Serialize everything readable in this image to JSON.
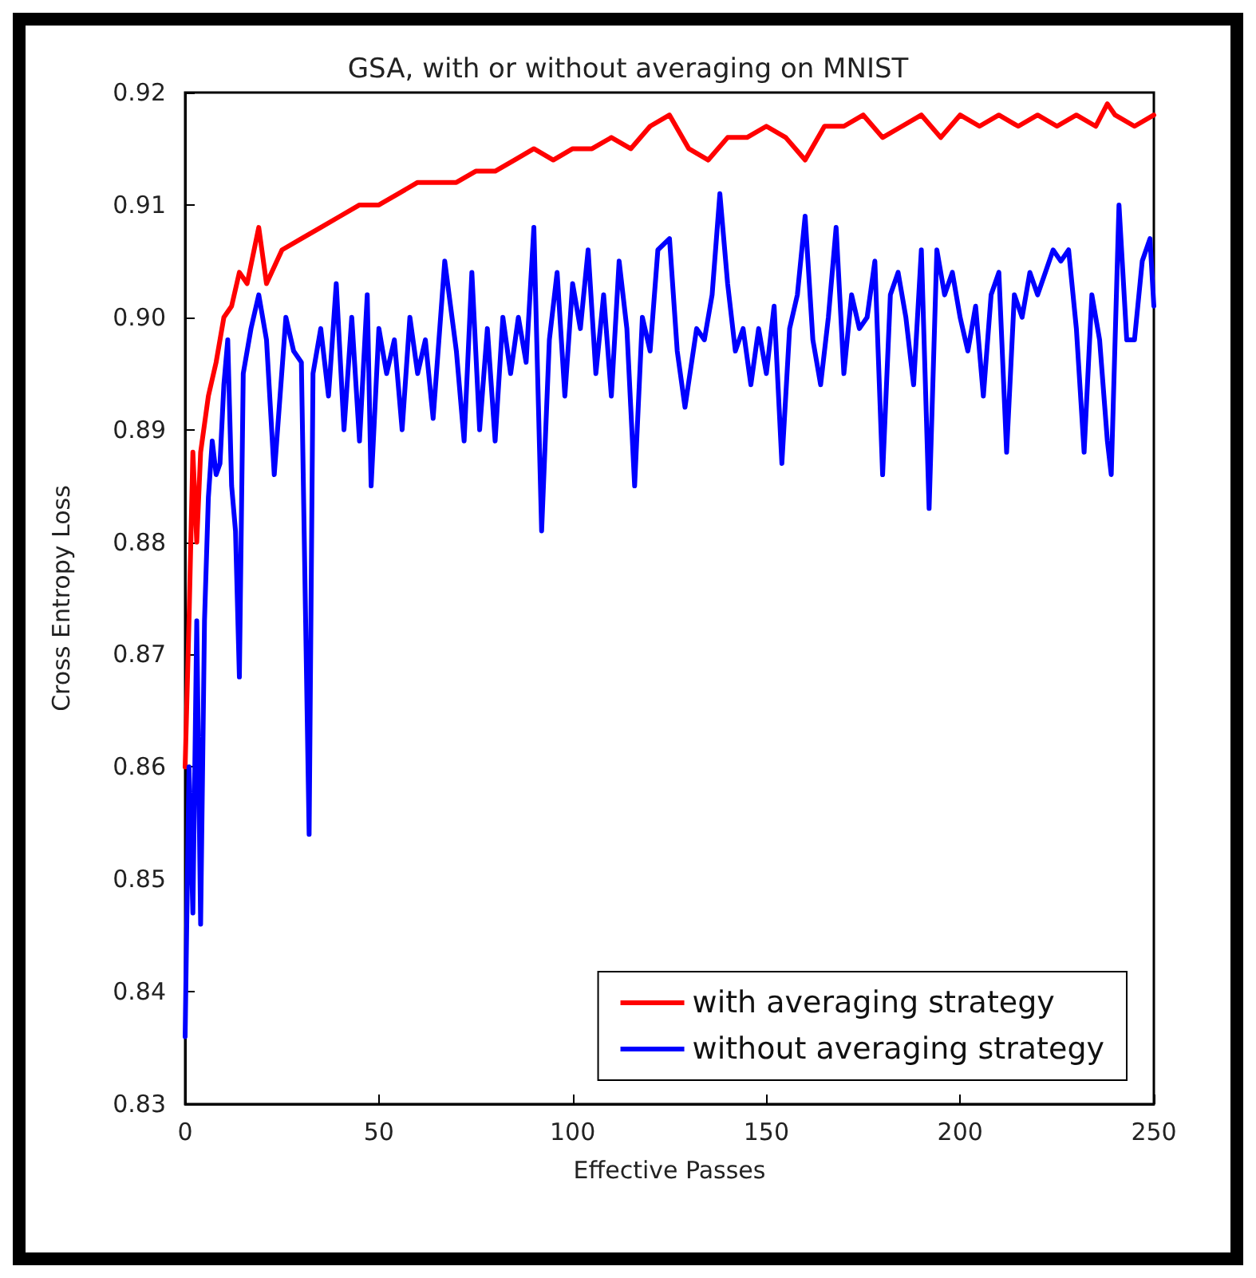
{
  "chart_data": {
    "type": "line",
    "title": "GSA, with or without averaging on MNIST",
    "xlabel": "Effective Passes",
    "ylabel": "Cross Entropy Loss",
    "xlim": [
      0,
      250
    ],
    "xticks": [
      0,
      50,
      100,
      150,
      200,
      250
    ],
    "ylim": [
      0.83,
      0.92
    ],
    "yticks": [
      0.83,
      0.84,
      0.85,
      0.86,
      0.87,
      0.88,
      0.89,
      {
        "value": 0.9,
        "label": "0.90"
      },
      0.91,
      0.92
    ],
    "grid": false,
    "legend": "bottom right",
    "marker": "none",
    "line_style": "solid",
    "series": [
      {
        "name": "with averaging strategy",
        "color": "#ff0000",
        "x": [
          0,
          1,
          2,
          3,
          4,
          6,
          8,
          10,
          12,
          14,
          16,
          19,
          21,
          25,
          30,
          35,
          40,
          45,
          50,
          55,
          60,
          65,
          70,
          75,
          80,
          85,
          90,
          95,
          100,
          105,
          110,
          115,
          120,
          125,
          130,
          135,
          140,
          145,
          150,
          155,
          160,
          165,
          170,
          175,
          180,
          185,
          190,
          195,
          200,
          205,
          210,
          215,
          220,
          225,
          230,
          235,
          238,
          240,
          245,
          250
        ],
        "values": [
          0.86,
          0.873,
          0.888,
          0.88,
          0.888,
          0.893,
          0.896,
          0.9,
          0.901,
          0.904,
          0.903,
          0.908,
          0.903,
          0.906,
          0.907,
          0.908,
          0.909,
          0.91,
          0.91,
          0.911,
          0.912,
          0.912,
          0.912,
          0.913,
          0.913,
          0.914,
          0.915,
          0.914,
          0.915,
          0.915,
          0.916,
          0.915,
          0.917,
          0.918,
          0.915,
          0.914,
          0.916,
          0.916,
          0.917,
          0.916,
          0.914,
          0.917,
          0.917,
          0.918,
          0.916,
          0.917,
          0.918,
          0.916,
          0.918,
          0.917,
          0.918,
          0.917,
          0.918,
          0.917,
          0.918,
          0.917,
          0.919,
          0.918,
          0.917,
          0.918
        ]
      },
      {
        "name": "without averaging strategy",
        "color": "#0000ff",
        "x": [
          0,
          1,
          2,
          3,
          4,
          5,
          6,
          7,
          8,
          9,
          10,
          11,
          12,
          13,
          14,
          15,
          17,
          19,
          21,
          23,
          26,
          28,
          30,
          32,
          33,
          35,
          37,
          39,
          41,
          43,
          45,
          47,
          48,
          50,
          52,
          54,
          56,
          58,
          60,
          62,
          64,
          67,
          70,
          72,
          74,
          76,
          78,
          80,
          82,
          84,
          86,
          88,
          90,
          92,
          94,
          96,
          98,
          100,
          102,
          104,
          106,
          108,
          110,
          112,
          114,
          116,
          118,
          120,
          122,
          125,
          127,
          129,
          132,
          134,
          136,
          138,
          140,
          142,
          144,
          146,
          148,
          150,
          152,
          154,
          156,
          158,
          160,
          162,
          164,
          166,
          168,
          170,
          172,
          174,
          176,
          178,
          180,
          182,
          184,
          186,
          188,
          190,
          192,
          194,
          196,
          198,
          200,
          202,
          204,
          206,
          208,
          210,
          212,
          214,
          216,
          218,
          220,
          222,
          224,
          226,
          228,
          230,
          232,
          234,
          236,
          238,
          239,
          241,
          243,
          245,
          247,
          249,
          250
        ],
        "values": [
          0.836,
          0.86,
          0.847,
          0.873,
          0.846,
          0.873,
          0.884,
          0.889,
          0.886,
          0.887,
          0.894,
          0.898,
          0.885,
          0.881,
          0.868,
          0.895,
          0.899,
          0.902,
          0.898,
          0.886,
          0.9,
          0.897,
          0.896,
          0.854,
          0.895,
          0.899,
          0.893,
          0.903,
          0.89,
          0.9,
          0.889,
          0.902,
          0.885,
          0.899,
          0.895,
          0.898,
          0.89,
          0.9,
          0.895,
          0.898,
          0.891,
          0.905,
          0.897,
          0.889,
          0.904,
          0.89,
          0.899,
          0.889,
          0.9,
          0.895,
          0.9,
          0.896,
          0.908,
          0.881,
          0.898,
          0.904,
          0.893,
          0.903,
          0.899,
          0.906,
          0.895,
          0.902,
          0.893,
          0.905,
          0.899,
          0.885,
          0.9,
          0.897,
          0.906,
          0.907,
          0.897,
          0.892,
          0.899,
          0.898,
          0.902,
          0.911,
          0.903,
          0.897,
          0.899,
          0.894,
          0.899,
          0.895,
          0.901,
          0.887,
          0.899,
          0.902,
          0.909,
          0.898,
          0.894,
          0.9,
          0.908,
          0.895,
          0.902,
          0.899,
          0.9,
          0.905,
          0.886,
          0.902,
          0.904,
          0.9,
          0.894,
          0.906,
          0.883,
          0.906,
          0.902,
          0.904,
          0.9,
          0.897,
          0.901,
          0.893,
          0.902,
          0.904,
          0.888,
          0.902,
          0.9,
          0.904,
          0.902,
          0.904,
          0.906,
          0.905,
          0.906,
          0.899,
          0.888,
          0.902,
          0.898,
          0.889,
          0.886,
          0.91,
          0.898,
          0.898,
          0.905,
          0.907,
          0.901
        ]
      }
    ]
  }
}
